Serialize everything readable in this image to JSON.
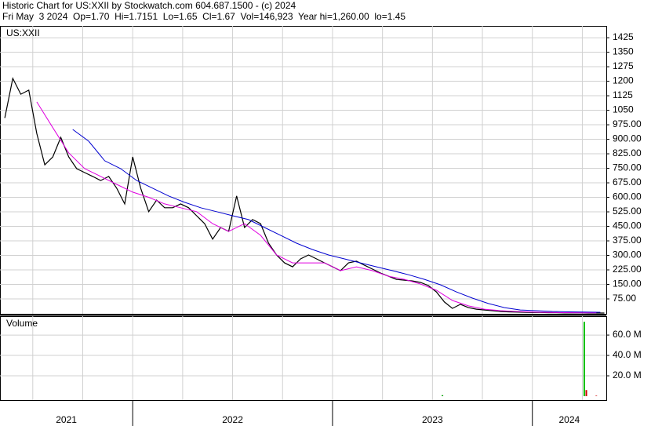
{
  "chart_data": [
    {
      "type": "line",
      "title": "Historic Chart for US:XXII by Stockwatch.com 604.687.1500 - (c) 2024",
      "subtitle": "Fri May  3 2024  Op=1.70  Hi=1.7151  Lo=1.65  Cl=1.67  Vol=146,923  Year hi=1,260.00  lo=1.45",
      "panel_label": "US:XXII",
      "xlim": [
        2021.336,
        2024.37
      ],
      "xticks": [
        2021.5,
        2021.75,
        2022,
        2022.25,
        2022.5,
        2022.75,
        2023,
        2023.25,
        2023.5,
        2023.75,
        2024,
        2024.25
      ],
      "ylim": [
        0,
        1480
      ],
      "yticks": [
        1425,
        1350,
        1275,
        1200,
        1125,
        1050,
        {
          "value": 975,
          "label": "975.00"
        },
        {
          "value": 900,
          "label": "900.00"
        },
        {
          "value": 825,
          "label": "825.00"
        },
        {
          "value": 750,
          "label": "750.00"
        },
        {
          "value": 675,
          "label": "675.00"
        },
        {
          "value": 600,
          "label": "600.00"
        },
        {
          "value": 525,
          "label": "525.00"
        },
        {
          "value": 450,
          "label": "450.00"
        },
        {
          "value": 375,
          "label": "375.00"
        },
        {
          "value": 300,
          "label": "300.00"
        },
        {
          "value": 225,
          "label": "225.00"
        },
        {
          "value": 150,
          "label": "150.00"
        },
        {
          "value": 75,
          "label": "75.00"
        }
      ],
      "grid": true,
      "series": [
        {
          "color": "#000000",
          "x": [
            2021.36,
            2021.4,
            2021.44,
            2021.48,
            2021.52,
            2021.56,
            2021.6,
            2021.64,
            2021.68,
            2021.72,
            2021.76,
            2021.8,
            2021.84,
            2021.88,
            2021.92,
            2021.96,
            2022.0,
            2022.04,
            2022.08,
            2022.12,
            2022.16,
            2022.2,
            2022.24,
            2022.28,
            2022.32,
            2022.36,
            2022.4,
            2022.44,
            2022.48,
            2022.52,
            2022.56,
            2022.6,
            2022.64,
            2022.68,
            2022.72,
            2022.76,
            2022.8,
            2022.84,
            2022.88,
            2022.92,
            2022.96,
            2023.0,
            2023.04,
            2023.08,
            2023.12,
            2023.16,
            2023.2,
            2023.24,
            2023.28,
            2023.32,
            2023.36,
            2023.4,
            2023.44,
            2023.48,
            2023.52,
            2023.56,
            2023.6,
            2023.64,
            2023.68,
            2023.72,
            2023.76,
            2023.8,
            2023.84,
            2023.88,
            2023.92,
            2023.96,
            2024.0,
            2024.04,
            2024.08,
            2024.12,
            2024.16,
            2024.2,
            2024.24,
            2024.28,
            2024.32,
            2024.36
          ],
          "values": [
            1010,
            1215,
            1133,
            1154,
            930,
            768,
            809,
            910,
            809,
            748,
            728,
            708,
            687,
            708,
            647,
            566,
            809,
            647,
            526,
            586,
            546,
            546,
            566,
            546,
            505,
            464,
            384,
            444,
            424,
            607,
            444,
            485,
            464,
            363,
            302,
            261,
            241,
            282,
            302,
            282,
            261,
            241,
            221,
            261,
            270,
            249,
            229,
            209,
            192,
            176,
            172,
            168,
            160,
            144,
            111,
            59,
            26,
            47,
            30,
            22,
            18,
            14,
            10,
            8,
            7,
            6,
            5,
            5,
            4,
            4,
            3,
            3,
            3,
            2,
            2,
            2
          ]
        },
        {
          "color": "#e000e0",
          "x": [
            2021.52,
            2021.6,
            2021.68,
            2021.76,
            2021.84,
            2021.92,
            2022.0,
            2022.08,
            2022.16,
            2022.24,
            2022.32,
            2022.4,
            2022.48,
            2022.56,
            2022.64,
            2022.72,
            2022.8,
            2022.88,
            2022.96,
            2023.04,
            2023.12,
            2023.2,
            2023.28,
            2023.36,
            2023.44,
            2023.52,
            2023.6,
            2023.68,
            2023.76,
            2023.84,
            2023.92,
            2024.0,
            2024.08,
            2024.16,
            2024.24,
            2024.32
          ],
          "values": [
            1093,
            960,
            830,
            748,
            708,
            667,
            627,
            600,
            566,
            546,
            526,
            464,
            424,
            464,
            404,
            302,
            261,
            261,
            261,
            221,
            241,
            221,
            192,
            176,
            152,
            120,
            67,
            39,
            22,
            14,
            10,
            7,
            5,
            4,
            3,
            3
          ]
        },
        {
          "color": "#0000d0",
          "x": [
            2021.7,
            2021.78,
            2021.86,
            2021.94,
            2022.02,
            2022.1,
            2022.18,
            2022.26,
            2022.34,
            2022.42,
            2022.5,
            2022.58,
            2022.66,
            2022.74,
            2022.82,
            2022.9,
            2022.98,
            2023.06,
            2023.14,
            2023.22,
            2023.3,
            2023.38,
            2023.46,
            2023.54,
            2023.62,
            2023.7,
            2023.78,
            2023.86,
            2023.94,
            2024.02,
            2024.1,
            2024.18,
            2024.26,
            2024.34
          ],
          "values": [
            951,
            890,
            789,
            748,
            687,
            647,
            607,
            574,
            546,
            526,
            505,
            485,
            444,
            404,
            363,
            330,
            302,
            282,
            261,
            241,
            221,
            200,
            176,
            148,
            111,
            79,
            51,
            30,
            18,
            14,
            10,
            8,
            7,
            6
          ]
        }
      ]
    },
    {
      "type": "bar",
      "panel_label": "Volume",
      "xlim": [
        2021.336,
        2024.37
      ],
      "xticks": [
        2021.5,
        2021.75,
        2022,
        2022.25,
        2022.5,
        2022.75,
        2023,
        2023.25,
        2023.5,
        2023.75,
        2024,
        2024.25
      ],
      "x_labels": [
        "2021",
        "2022",
        "2023",
        "2024"
      ],
      "ylim": [
        0,
        77
      ],
      "yticks": [
        {
          "value": 60,
          "label": "60.0 M"
        },
        {
          "value": 40,
          "label": "40.0 M"
        },
        {
          "value": 20,
          "label": "20.0 M"
        }
      ],
      "grid": true,
      "x": [
        2023.55,
        2024.26,
        2024.27,
        2024.32
      ],
      "values": [
        1,
        73,
        6,
        0.5
      ],
      "colors": [
        "#00a000",
        "#00c000",
        "#cc0000",
        "#cc0000"
      ]
    }
  ]
}
